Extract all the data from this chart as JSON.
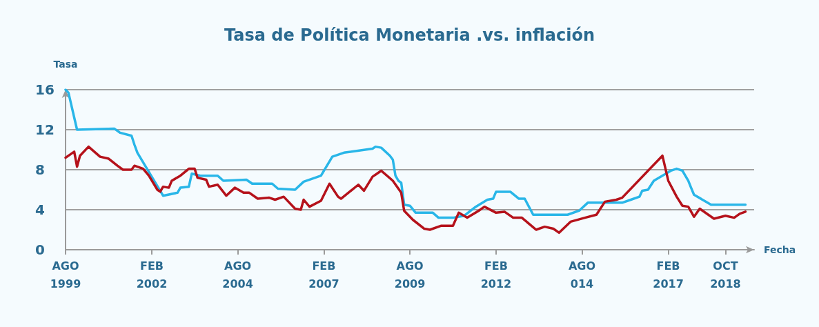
{
  "chart_data": {
    "type": "line",
    "title": "Tasa de Política Monetaria .vs. inflación",
    "xlabel": "Fecha",
    "ylabel": "Tasa",
    "xlim": [
      "1999-08",
      "2019-08"
    ],
    "xticks": [
      {
        "value": "1999-08",
        "label": "AGO\n1999"
      },
      {
        "value": "2002-02",
        "label": "FEB\n2002"
      },
      {
        "value": "2004-08",
        "label": "AGO\n2004"
      },
      {
        "value": "2007-02",
        "label": "FEB\n2007"
      },
      {
        "value": "2009-08",
        "label": "AGO\n2009"
      },
      {
        "value": "2012-02",
        "label": "FEB\n2012"
      },
      {
        "value": "2014-08",
        "label": "AGO\n014"
      },
      {
        "value": "2017-02",
        "label": "FEB\n2017"
      },
      {
        "value": "2018-10",
        "label": "OCT\n2018"
      }
    ],
    "ylim": [
      0,
      16
    ],
    "yticks": [
      0,
      4,
      8,
      12,
      16
    ],
    "grid": "y",
    "marker": "none",
    "line_style": "solid",
    "series": [
      {
        "color": "#29b6e8",
        "x": [
          "1999-08",
          "1999-09",
          "1999-12",
          "2001-01",
          "2001-03",
          "2001-07",
          "2001-08",
          "2001-09",
          "2002-06",
          "2002-11",
          "2002-12",
          "2003-03",
          "2003-04",
          "2003-07",
          "2004-01",
          "2004-03",
          "2004-11",
          "2005-01",
          "2005-08",
          "2005-10",
          "2006-04",
          "2006-07",
          "2007-01",
          "2007-05",
          "2007-09",
          "2008-07",
          "2008-08",
          "2008-10",
          "2009-01",
          "2009-02",
          "2009-03",
          "2009-04",
          "2009-05",
          "2009-06",
          "2009-08",
          "2009-10",
          "2010-04",
          "2010-06",
          "2010-11",
          "2011-03",
          "2011-07",
          "2011-11",
          "2012-01",
          "2012-02",
          "2012-07",
          "2012-10",
          "2012-12",
          "2013-03",
          "2014-03",
          "2014-07",
          "2014-10",
          "2015-10",
          "2016-01",
          "2016-04",
          "2016-05",
          "2016-07",
          "2016-09",
          "2017-03",
          "2017-05",
          "2017-07",
          "2017-09",
          "2017-10",
          "2017-11",
          "2018-05",
          "2019-05"
        ],
        "values": [
          16.0,
          15.7,
          12.0,
          12.1,
          11.7,
          11.4,
          10.5,
          9.7,
          5.4,
          5.7,
          6.2,
          6.3,
          7.6,
          7.4,
          7.4,
          6.9,
          7.0,
          6.6,
          6.6,
          6.1,
          6.0,
          6.8,
          7.4,
          9.3,
          9.7,
          10.1,
          10.3,
          10.2,
          9.4,
          9.0,
          7.4,
          6.9,
          6.7,
          4.5,
          4.4,
          3.7,
          3.7,
          3.2,
          3.2,
          3.4,
          4.3,
          5.0,
          5.1,
          5.8,
          5.8,
          5.1,
          5.1,
          3.5,
          3.5,
          3.9,
          4.7,
          4.7,
          5.0,
          5.3,
          5.9,
          6.0,
          6.9,
          7.9,
          8.1,
          7.9,
          6.9,
          6.2,
          5.5,
          4.5,
          4.5
        ]
      },
      {
        "color": "#b5121b",
        "x": [
          "1999-08",
          "1999-11",
          "1999-12",
          "2000-01",
          "2000-04",
          "2000-08",
          "2000-11",
          "2001-02",
          "2001-04",
          "2001-07",
          "2001-08",
          "2001-11",
          "2002-01",
          "2002-04",
          "2002-05",
          "2002-06",
          "2002-08",
          "2002-09",
          "2002-12",
          "2003-03",
          "2003-05",
          "2003-06",
          "2003-09",
          "2003-10",
          "2004-01",
          "2004-04",
          "2004-07",
          "2004-10",
          "2004-12",
          "2005-03",
          "2005-07",
          "2005-09",
          "2005-12",
          "2006-04",
          "2006-06",
          "2006-07",
          "2006-09",
          "2007-01",
          "2007-04",
          "2007-07",
          "2007-08",
          "2008-02",
          "2008-04",
          "2008-07",
          "2008-10",
          "2009-02",
          "2009-05",
          "2009-06",
          "2009-09",
          "2010-01",
          "2010-03",
          "2010-07",
          "2010-11",
          "2011-01",
          "2011-04",
          "2011-08",
          "2011-10",
          "2012-02",
          "2012-05",
          "2012-08",
          "2012-11",
          "2013-04",
          "2013-07",
          "2013-10",
          "2013-12",
          "2014-04",
          "2014-09",
          "2015-01",
          "2015-04",
          "2015-08",
          "2015-10",
          "2016-12",
          "2017-02",
          "2017-05",
          "2017-07",
          "2017-09",
          "2017-11",
          "2018-01",
          "2018-06",
          "2018-10",
          "2019-01",
          "2019-03",
          "2019-05"
        ],
        "values": [
          9.2,
          9.8,
          8.3,
          9.4,
          10.3,
          9.3,
          9.1,
          8.4,
          8.0,
          8.0,
          8.4,
          8.1,
          7.4,
          6.0,
          5.8,
          6.3,
          6.2,
          6.9,
          7.4,
          8.1,
          8.1,
          7.2,
          7.0,
          6.3,
          6.5,
          5.4,
          6.2,
          5.7,
          5.7,
          5.1,
          5.2,
          5.0,
          5.3,
          4.1,
          4.0,
          5.0,
          4.3,
          4.9,
          6.6,
          5.3,
          5.1,
          6.5,
          5.9,
          7.3,
          7.9,
          6.9,
          5.7,
          3.9,
          3.0,
          2.1,
          2.0,
          2.4,
          2.4,
          3.7,
          3.2,
          3.9,
          4.3,
          3.7,
          3.8,
          3.2,
          3.2,
          2.0,
          2.3,
          2.1,
          1.7,
          2.8,
          3.2,
          3.5,
          4.8,
          5.0,
          5.2,
          9.4,
          6.9,
          5.3,
          4.4,
          4.3,
          3.3,
          4.1,
          3.1,
          3.4,
          3.2,
          3.6,
          3.8
        ]
      }
    ]
  }
}
